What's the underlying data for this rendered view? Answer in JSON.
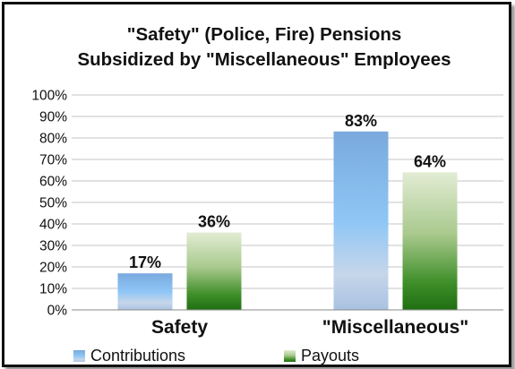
{
  "chart_data": {
    "type": "bar",
    "title_lines": [
      "\"Safety\" (Police, Fire) Pensions",
      "Subsidized by \"Miscellaneous\" Employees"
    ],
    "categories": [
      "Safety",
      "\"Miscellaneous\""
    ],
    "series": [
      {
        "name": "Contributions",
        "values": [
          17,
          83
        ],
        "data_labels": [
          "17%",
          "83%"
        ],
        "color": "#7fb4e8"
      },
      {
        "name": "Payouts",
        "values": [
          36,
          64
        ],
        "data_labels": [
          "36%",
          "64%"
        ],
        "color": "#3f8f2a"
      }
    ],
    "ylim": [
      0,
      100
    ],
    "yticks": [
      0,
      10,
      20,
      30,
      40,
      50,
      60,
      70,
      80,
      90,
      100
    ],
    "ytick_labels": [
      "0%",
      "10%",
      "20%",
      "30%",
      "40%",
      "50%",
      "60%",
      "70%",
      "80%",
      "90%",
      "100%"
    ],
    "grid": true,
    "legend_position": "bottom"
  }
}
